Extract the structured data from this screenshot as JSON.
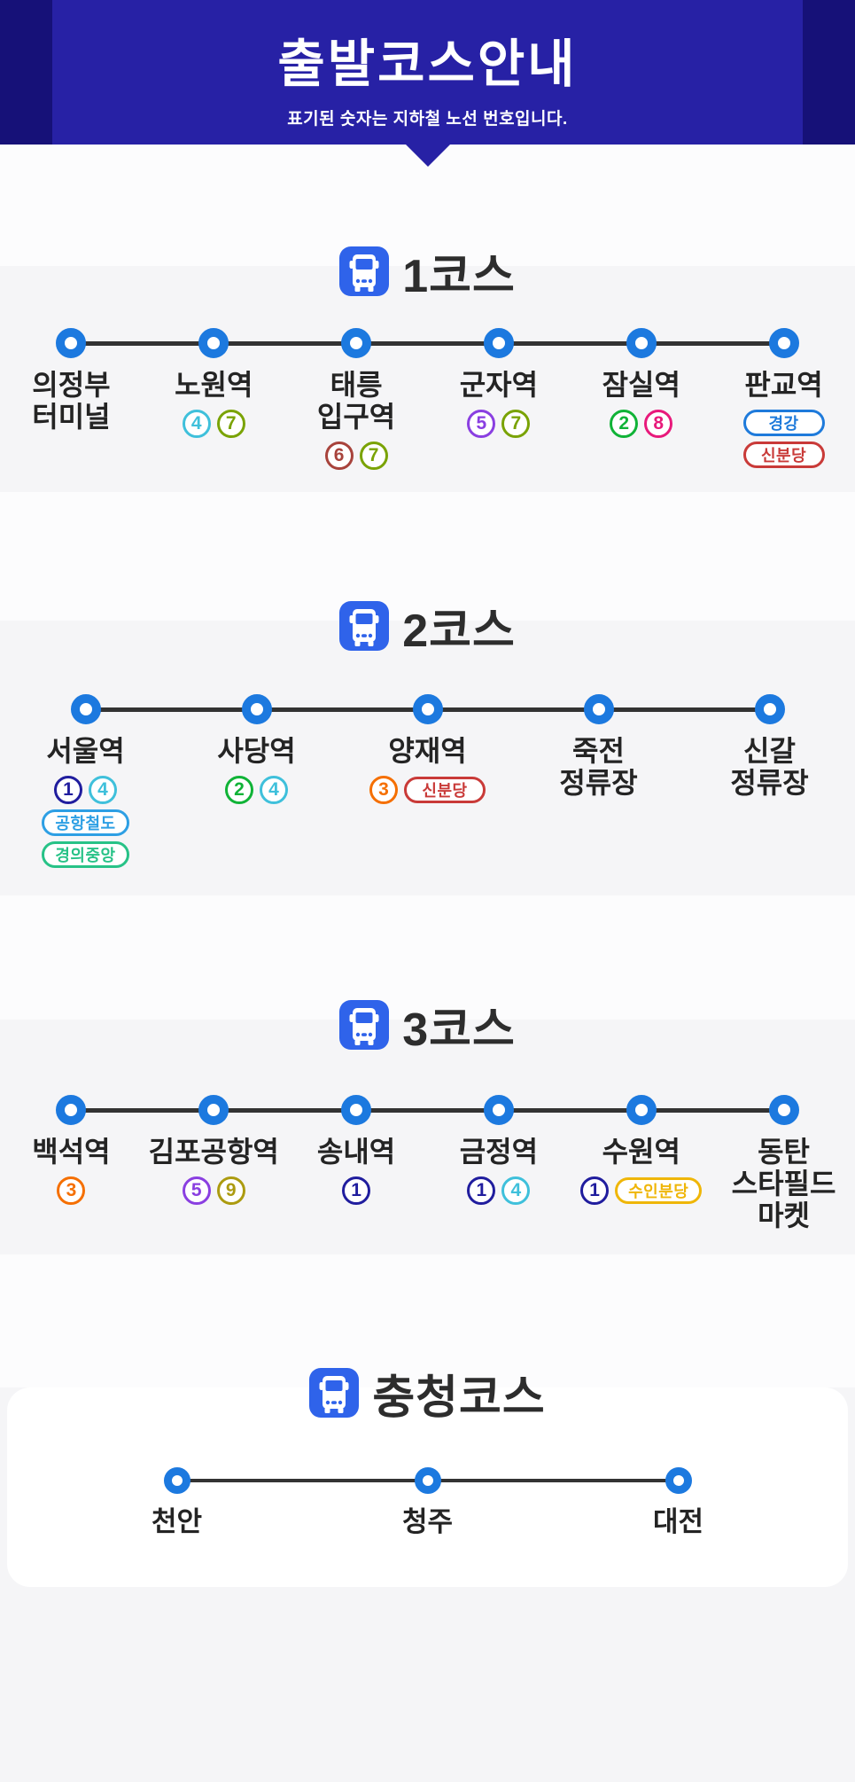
{
  "header": {
    "title": "출발코스안내",
    "subtitle": "표기된 숫자는 지하철 노선 번호입니다."
  },
  "colors": {
    "banner": "#2721A5",
    "banner_side": "#161178",
    "page_bg": "#FCFCFD",
    "section_bg": "#F5F5F7",
    "node": "#1C79DF",
    "track": "#333333",
    "bus_icon": "#2F63EA",
    "line_1": "#201D9E",
    "line_2": "#10B337",
    "line_3": "#F56F00",
    "line_4": "#3FC0DB",
    "line_5": "#8A3FE1",
    "line_6": "#A8433C",
    "line_7": "#7AA305",
    "line_8": "#E8197B",
    "line_9": "#AC9B10",
    "gyeonggang": "#1E7ADB",
    "sinbundang": "#C93A38",
    "airport_rail": "#2D9FE4",
    "gyeongui_jungang": "#27C287",
    "suin_bundang": "#EFB608"
  },
  "courses": [
    {
      "title": "1코스",
      "stations": [
        {
          "name": "의정부\n터미널",
          "badge_rows": []
        },
        {
          "name": "노원역",
          "badge_rows": [
            [
              {
                "shape": "circle",
                "text": "4",
                "color": "#3FC0DB"
              },
              {
                "shape": "circle",
                "text": "7",
                "color": "#7AA305"
              }
            ]
          ]
        },
        {
          "name": "태릉\n입구역",
          "badge_rows": [
            [
              {
                "shape": "circle",
                "text": "6",
                "color": "#A8433C"
              },
              {
                "shape": "circle",
                "text": "7",
                "color": "#7AA305"
              }
            ]
          ]
        },
        {
          "name": "군자역",
          "badge_rows": [
            [
              {
                "shape": "circle",
                "text": "5",
                "color": "#8A3FE1"
              },
              {
                "shape": "circle",
                "text": "7",
                "color": "#7AA305"
              }
            ]
          ]
        },
        {
          "name": "잠실역",
          "badge_rows": [
            [
              {
                "shape": "circle",
                "text": "2",
                "color": "#10B337"
              },
              {
                "shape": "circle",
                "text": "8",
                "color": "#E8197B"
              }
            ]
          ]
        },
        {
          "name": "판교역",
          "badge_rows": [
            [
              {
                "shape": "pill",
                "text": "경강",
                "color": "#1E7ADB"
              }
            ],
            [
              {
                "shape": "pill",
                "text": "신분당",
                "color": "#C93A38"
              }
            ]
          ]
        }
      ]
    },
    {
      "title": "2코스",
      "stations": [
        {
          "name": "서울역",
          "badge_rows": [
            [
              {
                "shape": "circle",
                "text": "1",
                "color": "#201D9E"
              },
              {
                "shape": "circle",
                "text": "4",
                "color": "#3FC0DB"
              }
            ],
            [
              {
                "shape": "pill",
                "text": "공항철도",
                "color": "#2D9FE4"
              }
            ],
            [
              {
                "shape": "pill",
                "text": "경의중앙",
                "color": "#27C287"
              }
            ]
          ]
        },
        {
          "name": "사당역",
          "badge_rows": [
            [
              {
                "shape": "circle",
                "text": "2",
                "color": "#10B337"
              },
              {
                "shape": "circle",
                "text": "4",
                "color": "#3FC0DB"
              }
            ]
          ]
        },
        {
          "name": "양재역",
          "badge_rows": [
            [
              {
                "shape": "circle",
                "text": "3",
                "color": "#F56F00"
              },
              {
                "shape": "pill",
                "text": "신분당",
                "color": "#C93A38"
              }
            ]
          ]
        },
        {
          "name": "죽전\n정류장",
          "badge_rows": []
        },
        {
          "name": "신갈\n정류장",
          "badge_rows": []
        }
      ]
    },
    {
      "title": "3코스",
      "stations": [
        {
          "name": "백석역",
          "badge_rows": [
            [
              {
                "shape": "circle",
                "text": "3",
                "color": "#F56F00"
              }
            ]
          ]
        },
        {
          "name": "김포공항역",
          "badge_rows": [
            [
              {
                "shape": "circle",
                "text": "5",
                "color": "#8A3FE1"
              },
              {
                "shape": "circle",
                "text": "9",
                "color": "#AC9B10"
              }
            ]
          ]
        },
        {
          "name": "송내역",
          "badge_rows": [
            [
              {
                "shape": "circle",
                "text": "1",
                "color": "#201D9E"
              }
            ]
          ]
        },
        {
          "name": "금정역",
          "badge_rows": [
            [
              {
                "shape": "circle",
                "text": "1",
                "color": "#201D9E"
              },
              {
                "shape": "circle",
                "text": "4",
                "color": "#3FC0DB"
              }
            ]
          ]
        },
        {
          "name": "수원역",
          "badge_rows": [
            [
              {
                "shape": "circle",
                "text": "1",
                "color": "#201D9E"
              },
              {
                "shape": "pill",
                "text": "수인분당",
                "color": "#EFB608"
              }
            ]
          ]
        },
        {
          "name": "동탄\n스타필드\n마켓",
          "badge_rows": []
        }
      ]
    },
    {
      "title": "충청코스",
      "card": true,
      "small": true,
      "stations": [
        {
          "name": "천안",
          "badge_rows": []
        },
        {
          "name": "청주",
          "badge_rows": []
        },
        {
          "name": "대전",
          "badge_rows": []
        }
      ]
    }
  ]
}
